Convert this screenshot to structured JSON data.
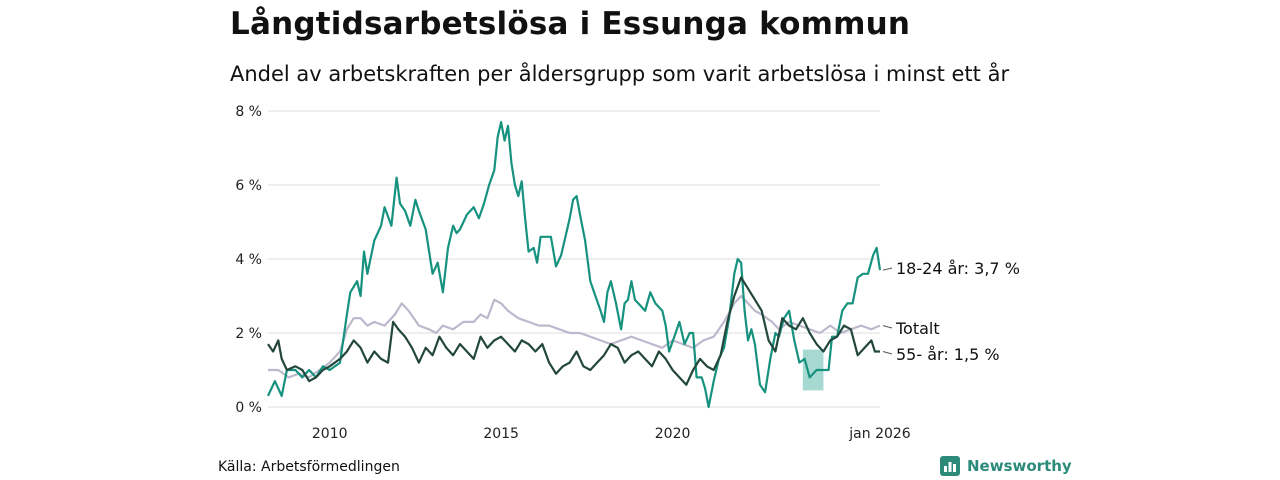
{
  "title": "Långtidsarbetslösa i Essunga kommun",
  "subtitle": "Andel av arbetskraften per åldersgrupp som varit arbetslösa i minst ett år",
  "source": "Källa: Arbetsförmedlingen",
  "brand": "Newsworthy",
  "colors": {
    "young": "#16927f",
    "total": "#bdb8cb",
    "old": "#23473d",
    "band": "#8fcfc5",
    "grid": "#dcdcdc",
    "brand": "#2c8a7a"
  },
  "chart_data": {
    "type": "line",
    "title": "Långtidsarbetslösa i Essunga kommun",
    "xlabel": "",
    "ylabel": "",
    "xlim": [
      2008.2,
      2026.05
    ],
    "ylim": [
      0,
      8
    ],
    "y_ticks": [
      0,
      2,
      4,
      6,
      8
    ],
    "y_tick_labels": [
      "0 %",
      "2 %",
      "4 %",
      "6 %",
      "8 %"
    ],
    "x_ticks": [
      2010,
      2015,
      2020,
      2026.05
    ],
    "x_tick_labels": [
      "2010",
      "2015",
      "2020",
      "jan 2026"
    ],
    "grid": true,
    "legend": "direct labels at line ends (right)",
    "end_labels": {
      "young": "18-24 år: 3,7 %",
      "total": "Totalt",
      "old": "55- år: 1,5 %"
    },
    "uncertainty_band": {
      "series": "18-24 år",
      "x": [
        2023.8,
        2024.4
      ],
      "lower": [
        0.45,
        0.45
      ],
      "upper": [
        1.55,
        1.55
      ]
    },
    "series": [
      {
        "key": "young",
        "name": "18-24 år",
        "points": [
          [
            2008.2,
            0.3
          ],
          [
            2008.4,
            0.7
          ],
          [
            2008.6,
            0.3
          ],
          [
            2008.75,
            1.0
          ],
          [
            2009.0,
            1.0
          ],
          [
            2009.2,
            0.8
          ],
          [
            2009.4,
            1.0
          ],
          [
            2009.6,
            0.8
          ],
          [
            2009.8,
            1.1
          ],
          [
            2010.0,
            1.0
          ],
          [
            2010.3,
            1.2
          ],
          [
            2010.5,
            2.5
          ],
          [
            2010.6,
            3.1
          ],
          [
            2010.8,
            3.4
          ],
          [
            2010.9,
            3.0
          ],
          [
            2011.0,
            4.2
          ],
          [
            2011.1,
            3.6
          ],
          [
            2011.3,
            4.5
          ],
          [
            2011.5,
            4.9
          ],
          [
            2011.6,
            5.4
          ],
          [
            2011.8,
            4.9
          ],
          [
            2011.95,
            6.2
          ],
          [
            2012.05,
            5.5
          ],
          [
            2012.2,
            5.3
          ],
          [
            2012.35,
            4.9
          ],
          [
            2012.5,
            5.6
          ],
          [
            2012.6,
            5.3
          ],
          [
            2012.8,
            4.8
          ],
          [
            2012.9,
            4.2
          ],
          [
            2013.0,
            3.6
          ],
          [
            2013.15,
            3.9
          ],
          [
            2013.3,
            3.1
          ],
          [
            2013.45,
            4.3
          ],
          [
            2013.6,
            4.9
          ],
          [
            2013.7,
            4.7
          ],
          [
            2013.8,
            4.8
          ],
          [
            2014.0,
            5.2
          ],
          [
            2014.2,
            5.4
          ],
          [
            2014.35,
            5.1
          ],
          [
            2014.5,
            5.5
          ],
          [
            2014.65,
            6.0
          ],
          [
            2014.8,
            6.4
          ],
          [
            2014.9,
            7.3
          ],
          [
            2015.0,
            7.7
          ],
          [
            2015.1,
            7.2
          ],
          [
            2015.2,
            7.6
          ],
          [
            2015.3,
            6.6
          ],
          [
            2015.4,
            6.0
          ],
          [
            2015.5,
            5.7
          ],
          [
            2015.6,
            6.1
          ],
          [
            2015.7,
            5.1
          ],
          [
            2015.8,
            4.2
          ],
          [
            2015.95,
            4.3
          ],
          [
            2016.05,
            3.9
          ],
          [
            2016.15,
            4.6
          ],
          [
            2016.3,
            4.6
          ],
          [
            2016.45,
            4.6
          ],
          [
            2016.6,
            3.8
          ],
          [
            2016.75,
            4.1
          ],
          [
            2016.9,
            4.7
          ],
          [
            2017.0,
            5.1
          ],
          [
            2017.1,
            5.6
          ],
          [
            2017.2,
            5.7
          ],
          [
            2017.3,
            5.2
          ],
          [
            2017.45,
            4.5
          ],
          [
            2017.6,
            3.4
          ],
          [
            2017.75,
            3.0
          ],
          [
            2017.9,
            2.6
          ],
          [
            2018.0,
            2.3
          ],
          [
            2018.1,
            3.1
          ],
          [
            2018.2,
            3.4
          ],
          [
            2018.35,
            2.8
          ],
          [
            2018.5,
            2.1
          ],
          [
            2018.6,
            2.8
          ],
          [
            2018.7,
            2.9
          ],
          [
            2018.8,
            3.4
          ],
          [
            2018.9,
            2.9
          ],
          [
            2019.0,
            2.8
          ],
          [
            2019.2,
            2.6
          ],
          [
            2019.35,
            3.1
          ],
          [
            2019.5,
            2.8
          ],
          [
            2019.6,
            2.7
          ],
          [
            2019.7,
            2.6
          ],
          [
            2019.8,
            2.2
          ],
          [
            2019.9,
            1.5
          ],
          [
            2020.05,
            1.9
          ],
          [
            2020.2,
            2.3
          ],
          [
            2020.35,
            1.7
          ],
          [
            2020.5,
            2.0
          ],
          [
            2020.6,
            2.0
          ],
          [
            2020.7,
            0.8
          ],
          [
            2020.85,
            0.8
          ],
          [
            2020.95,
            0.5
          ],
          [
            2021.05,
            0.0
          ],
          [
            2021.2,
            0.7
          ],
          [
            2021.35,
            1.3
          ],
          [
            2021.5,
            1.6
          ],
          [
            2021.65,
            2.4
          ],
          [
            2021.8,
            3.6
          ],
          [
            2021.9,
            4.0
          ],
          [
            2022.0,
            3.9
          ],
          [
            2022.1,
            2.6
          ],
          [
            2022.2,
            1.8
          ],
          [
            2022.3,
            2.1
          ],
          [
            2022.4,
            1.7
          ],
          [
            2022.55,
            0.6
          ],
          [
            2022.7,
            0.4
          ],
          [
            2022.85,
            1.3
          ],
          [
            2023.0,
            2.0
          ],
          [
            2023.1,
            1.9
          ],
          [
            2023.25,
            2.4
          ],
          [
            2023.4,
            2.6
          ],
          [
            2023.55,
            1.8
          ],
          [
            2023.7,
            1.2
          ],
          [
            2023.85,
            1.3
          ],
          [
            2024.0,
            0.8
          ],
          [
            2024.2,
            1.0
          ],
          [
            2024.4,
            1.0
          ],
          [
            2024.55,
            1.0
          ],
          [
            2024.65,
            1.9
          ],
          [
            2024.8,
            1.9
          ],
          [
            2024.95,
            2.6
          ],
          [
            2025.1,
            2.8
          ],
          [
            2025.25,
            2.8
          ],
          [
            2025.4,
            3.5
          ],
          [
            2025.55,
            3.6
          ],
          [
            2025.7,
            3.6
          ],
          [
            2025.85,
            4.1
          ],
          [
            2025.95,
            4.3
          ],
          [
            2026.05,
            3.7
          ]
        ]
      },
      {
        "key": "total",
        "name": "Totalt",
        "points": [
          [
            2008.2,
            1.0
          ],
          [
            2008.5,
            1.0
          ],
          [
            2008.8,
            0.8
          ],
          [
            2009.1,
            0.9
          ],
          [
            2009.4,
            0.8
          ],
          [
            2009.7,
            1.0
          ],
          [
            2010.0,
            1.2
          ],
          [
            2010.3,
            1.5
          ],
          [
            2010.5,
            2.1
          ],
          [
            2010.7,
            2.4
          ],
          [
            2010.9,
            2.4
          ],
          [
            2011.1,
            2.2
          ],
          [
            2011.3,
            2.3
          ],
          [
            2011.6,
            2.2
          ],
          [
            2011.9,
            2.5
          ],
          [
            2012.1,
            2.8
          ],
          [
            2012.3,
            2.6
          ],
          [
            2012.6,
            2.2
          ],
          [
            2012.9,
            2.1
          ],
          [
            2013.1,
            2.0
          ],
          [
            2013.3,
            2.2
          ],
          [
            2013.6,
            2.1
          ],
          [
            2013.9,
            2.3
          ],
          [
            2014.2,
            2.3
          ],
          [
            2014.4,
            2.5
          ],
          [
            2014.6,
            2.4
          ],
          [
            2014.8,
            2.9
          ],
          [
            2015.0,
            2.8
          ],
          [
            2015.2,
            2.6
          ],
          [
            2015.5,
            2.4
          ],
          [
            2015.8,
            2.3
          ],
          [
            2016.1,
            2.2
          ],
          [
            2016.4,
            2.2
          ],
          [
            2016.7,
            2.1
          ],
          [
            2017.0,
            2.0
          ],
          [
            2017.3,
            2.0
          ],
          [
            2017.6,
            1.9
          ],
          [
            2017.9,
            1.8
          ],
          [
            2018.2,
            1.7
          ],
          [
            2018.5,
            1.8
          ],
          [
            2018.8,
            1.9
          ],
          [
            2019.1,
            1.8
          ],
          [
            2019.4,
            1.7
          ],
          [
            2019.7,
            1.6
          ],
          [
            2020.0,
            1.8
          ],
          [
            2020.3,
            1.7
          ],
          [
            2020.6,
            1.6
          ],
          [
            2020.9,
            1.8
          ],
          [
            2021.2,
            1.9
          ],
          [
            2021.5,
            2.3
          ],
          [
            2021.8,
            2.8
          ],
          [
            2022.0,
            3.0
          ],
          [
            2022.2,
            2.8
          ],
          [
            2022.4,
            2.6
          ],
          [
            2022.6,
            2.5
          ],
          [
            2022.9,
            2.3
          ],
          [
            2023.1,
            2.1
          ],
          [
            2023.4,
            2.3
          ],
          [
            2023.7,
            2.2
          ],
          [
            2024.0,
            2.1
          ],
          [
            2024.3,
            2.0
          ],
          [
            2024.6,
            2.2
          ],
          [
            2024.9,
            2.0
          ],
          [
            2025.2,
            2.1
          ],
          [
            2025.5,
            2.2
          ],
          [
            2025.8,
            2.1
          ],
          [
            2026.05,
            2.2
          ]
        ]
      },
      {
        "key": "old",
        "name": "55- år",
        "points": [
          [
            2008.2,
            1.7
          ],
          [
            2008.35,
            1.5
          ],
          [
            2008.5,
            1.8
          ],
          [
            2008.6,
            1.3
          ],
          [
            2008.75,
            1.0
          ],
          [
            2009.0,
            1.1
          ],
          [
            2009.2,
            1.0
          ],
          [
            2009.4,
            0.7
          ],
          [
            2009.6,
            0.8
          ],
          [
            2009.8,
            1.0
          ],
          [
            2010.0,
            1.1
          ],
          [
            2010.3,
            1.3
          ],
          [
            2010.5,
            1.5
          ],
          [
            2010.7,
            1.8
          ],
          [
            2010.9,
            1.6
          ],
          [
            2011.1,
            1.2
          ],
          [
            2011.3,
            1.5
          ],
          [
            2011.5,
            1.3
          ],
          [
            2011.7,
            1.2
          ],
          [
            2011.85,
            2.3
          ],
          [
            2012.0,
            2.1
          ],
          [
            2012.2,
            1.9
          ],
          [
            2012.4,
            1.6
          ],
          [
            2012.6,
            1.2
          ],
          [
            2012.8,
            1.6
          ],
          [
            2013.0,
            1.4
          ],
          [
            2013.2,
            1.9
          ],
          [
            2013.4,
            1.6
          ],
          [
            2013.6,
            1.4
          ],
          [
            2013.8,
            1.7
          ],
          [
            2014.0,
            1.5
          ],
          [
            2014.2,
            1.3
          ],
          [
            2014.4,
            1.9
          ],
          [
            2014.6,
            1.6
          ],
          [
            2014.8,
            1.8
          ],
          [
            2015.0,
            1.9
          ],
          [
            2015.2,
            1.7
          ],
          [
            2015.4,
            1.5
          ],
          [
            2015.6,
            1.8
          ],
          [
            2015.8,
            1.7
          ],
          [
            2016.0,
            1.5
          ],
          [
            2016.2,
            1.7
          ],
          [
            2016.4,
            1.2
          ],
          [
            2016.6,
            0.9
          ],
          [
            2016.8,
            1.1
          ],
          [
            2017.0,
            1.2
          ],
          [
            2017.2,
            1.5
          ],
          [
            2017.4,
            1.1
          ],
          [
            2017.6,
            1.0
          ],
          [
            2017.8,
            1.2
          ],
          [
            2018.0,
            1.4
          ],
          [
            2018.2,
            1.7
          ],
          [
            2018.4,
            1.6
          ],
          [
            2018.6,
            1.2
          ],
          [
            2018.8,
            1.4
          ],
          [
            2019.0,
            1.5
          ],
          [
            2019.2,
            1.3
          ],
          [
            2019.4,
            1.1
          ],
          [
            2019.6,
            1.5
          ],
          [
            2019.8,
            1.3
          ],
          [
            2020.0,
            1.0
          ],
          [
            2020.2,
            0.8
          ],
          [
            2020.4,
            0.6
          ],
          [
            2020.6,
            1.0
          ],
          [
            2020.8,
            1.3
          ],
          [
            2021.0,
            1.1
          ],
          [
            2021.2,
            1.0
          ],
          [
            2021.4,
            1.4
          ],
          [
            2021.6,
            2.3
          ],
          [
            2021.8,
            3.0
          ],
          [
            2022.0,
            3.5
          ],
          [
            2022.2,
            3.2
          ],
          [
            2022.4,
            2.9
          ],
          [
            2022.6,
            2.6
          ],
          [
            2022.8,
            1.8
          ],
          [
            2023.0,
            1.5
          ],
          [
            2023.2,
            2.4
          ],
          [
            2023.4,
            2.2
          ],
          [
            2023.6,
            2.1
          ],
          [
            2023.8,
            2.4
          ],
          [
            2024.0,
            2.0
          ],
          [
            2024.2,
            1.7
          ],
          [
            2024.4,
            1.5
          ],
          [
            2024.6,
            1.8
          ],
          [
            2024.8,
            1.9
          ],
          [
            2025.0,
            2.2
          ],
          [
            2025.2,
            2.1
          ],
          [
            2025.4,
            1.4
          ],
          [
            2025.6,
            1.6
          ],
          [
            2025.8,
            1.8
          ],
          [
            2025.9,
            1.5
          ],
          [
            2026.05,
            1.5
          ]
        ]
      }
    ]
  }
}
